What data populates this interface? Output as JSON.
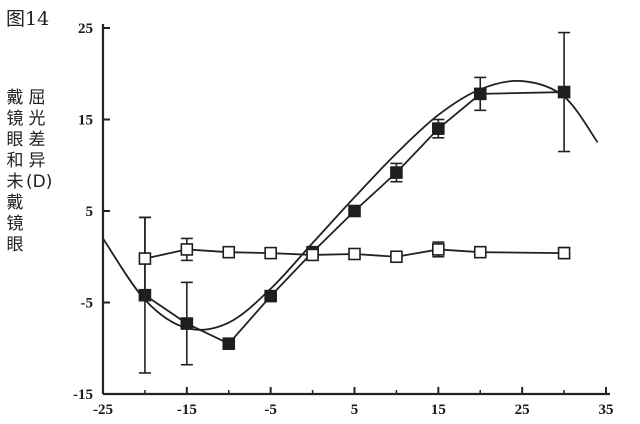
{
  "figure_label": "图14",
  "ylabel_col1": "屈光差异(D)",
  "ylabel_col2": "戴镜眼和未戴镜眼",
  "chart_data": {
    "type": "line",
    "title": "",
    "xlabel": "",
    "ylabel": "屈光差异(D)戴镜眼和未戴镜眼",
    "xlim": [
      -25,
      35
    ],
    "ylim": [
      -15,
      25
    ],
    "x_ticks": [
      -25,
      -15,
      -5,
      5,
      15,
      25,
      35
    ],
    "y_ticks": [
      -15,
      -5,
      5,
      15,
      25
    ],
    "grid": false,
    "legend": "none",
    "series": [
      {
        "marker": "filled-square",
        "color": "#222222",
        "x": [
          -20,
          -15,
          -10,
          -5,
          0,
          5,
          10,
          15,
          20,
          30
        ],
        "y": [
          -4.2,
          -7.3,
          -9.5,
          -4.3,
          0.5,
          5.0,
          9.2,
          14.0,
          17.8,
          18.0
        ],
        "err": [
          8.5,
          4.5,
          0,
          0,
          0,
          0,
          1.0,
          1.0,
          1.8,
          6.5
        ]
      },
      {
        "marker": "open-square",
        "color": "#222222",
        "x": [
          -20,
          -15,
          -10,
          -5,
          0,
          5,
          10,
          15,
          20,
          30
        ],
        "y": [
          -0.2,
          0.8,
          0.5,
          0.4,
          0.2,
          0.3,
          0.0,
          0.8,
          0.5,
          0.4
        ],
        "err": [
          4.5,
          1.2,
          0,
          0,
          0,
          0,
          0,
          0.8,
          0,
          0.6
        ]
      }
    ],
    "fitted_curves": [
      {
        "style": "smooth",
        "color": "#222222",
        "x": [
          -25,
          -20,
          -15,
          -10,
          -5,
          0,
          5,
          10,
          15,
          20,
          25,
          30,
          34
        ],
        "y": [
          2.0,
          -4.7,
          -7.8,
          -7.2,
          -3.5,
          1.5,
          6.5,
          11.3,
          15.5,
          18.3,
          19.2,
          17.5,
          12.5
        ]
      }
    ]
  }
}
